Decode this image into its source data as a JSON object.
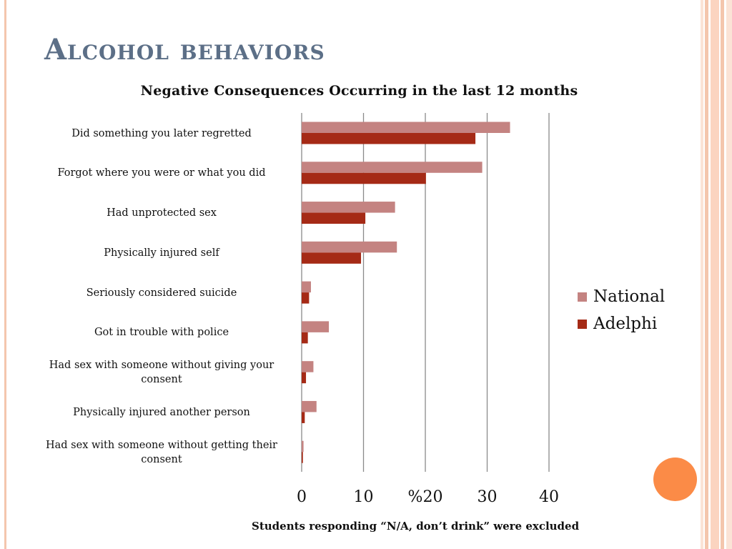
{
  "slide": {
    "title": "Alcohol behaviors",
    "footnote": "Students responding “N/A, don’t drink” were excluded"
  },
  "colors": {
    "national": "#c48381",
    "adelphi": "#a52a16",
    "title": "#5c6f87",
    "frame": "#f4c6ad",
    "accent_circle": "#fb8b47"
  },
  "chart_data": {
    "type": "bar",
    "orientation": "horizontal",
    "title": "Negative Consequences Occurring in the last 12 months",
    "categories": [
      "Did something you later regretted",
      "Forgot where you were or what you did",
      "Had unprotected sex",
      "Physically injured self",
      "Seriously considered suicide",
      "Got in trouble with police",
      "Had sex with someone without giving your consent",
      "Physically injured another person",
      "Had sex with someone without getting their consent"
    ],
    "series": [
      {
        "name": "National",
        "values": [
          33.7,
          29.2,
          15.1,
          15.4,
          1.5,
          4.4,
          1.9,
          2.4,
          0.3
        ]
      },
      {
        "name": "Adelphi",
        "values": [
          28.1,
          20.1,
          10.3,
          9.6,
          1.2,
          1.0,
          0.7,
          0.5,
          0.2
        ]
      }
    ],
    "xlim": [
      0,
      40
    ],
    "x_ticks": [
      "0",
      "10",
      "%20",
      "30",
      "40"
    ],
    "grid": true,
    "legend_position": "right"
  }
}
